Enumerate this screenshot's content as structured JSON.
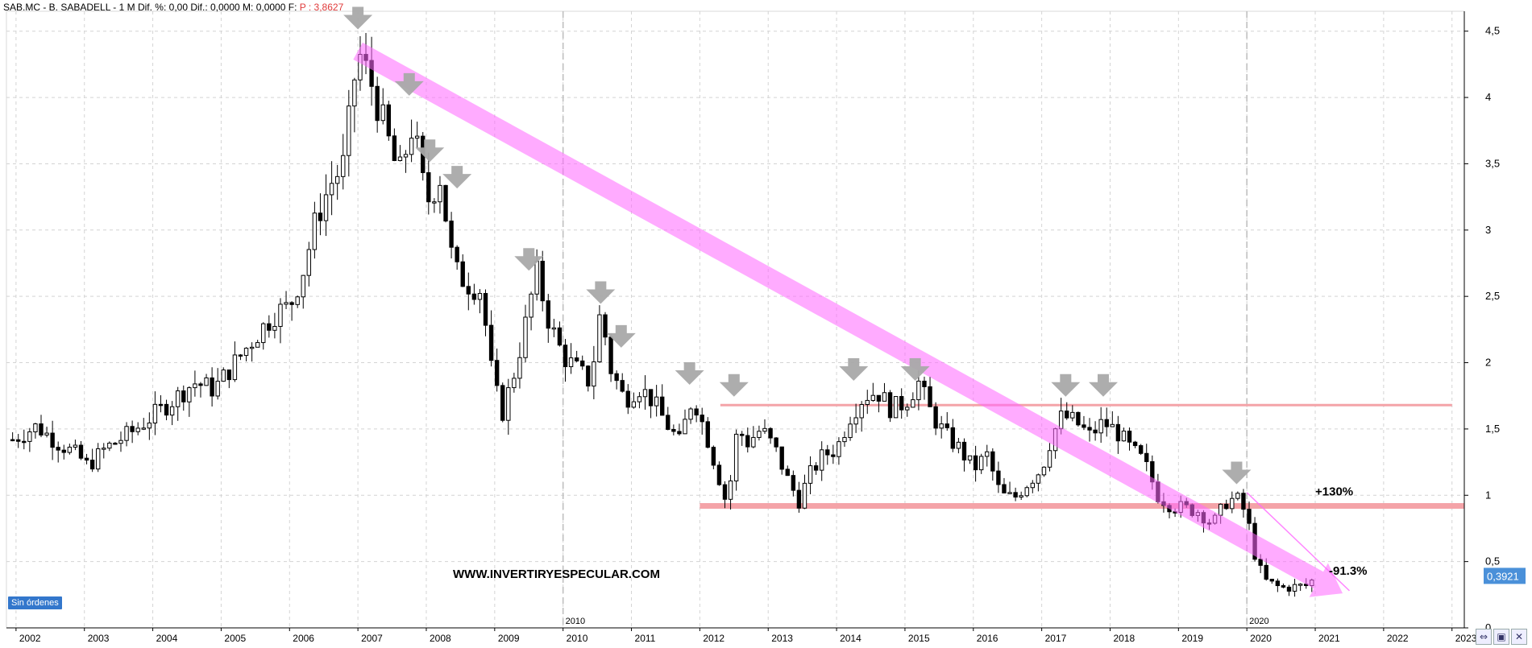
{
  "header": {
    "symbol": "SAB.MC - B. SABADELL -",
    "timeframe": "1 M",
    "fields": "Dif. %: 0,00  Dif.: 0,0000  M: 0,0000  F:",
    "price": "P : 3,8627"
  },
  "badge": "Sin órdenes",
  "watermark": "WWW.INVERTIRYESPECULAR.COM",
  "footer_icons": [
    "arrows-icon",
    "save-icon",
    "close-icon"
  ],
  "colors": {
    "channel": "#ff66ff",
    "support": "#f4a3a8",
    "arrow_marker": "#a9a9a9",
    "price_label_bg": "#4a90d9",
    "candle_bear": "#000000",
    "candle_bull": "#ffffff"
  },
  "chart_data": {
    "type": "candlestick",
    "ylim": [
      0,
      4.65
    ],
    "y_ticks": [
      "0",
      "0,5",
      "1",
      "1,5",
      "2",
      "2,5",
      "3",
      "3,5",
      "4",
      "4,5"
    ],
    "y_tick_values": [
      0,
      0.5,
      1,
      1.5,
      2,
      2.5,
      3,
      3.5,
      4,
      4.5
    ],
    "x_ticks": [
      "2002",
      "2003",
      "2004",
      "2005",
      "2006",
      "2007",
      "2008",
      "2009",
      "2010",
      "2011",
      "2012",
      "2013",
      "2014",
      "2015",
      "2016",
      "2017",
      "2018",
      "2019",
      "2020",
      "2021",
      "2022",
      "2023"
    ],
    "x_tick_years": [
      2002,
      2003,
      2004,
      2005,
      2006,
      2007,
      2008,
      2009,
      2010,
      2011,
      2012,
      2013,
      2014,
      2015,
      2016,
      2017,
      2018,
      2019,
      2020,
      2021,
      2022,
      2023
    ],
    "x_range": [
      2001.86,
      2023.18
    ],
    "highlight_years": [
      "2010",
      "2020"
    ],
    "highlight_year_values": [
      2010,
      2020
    ],
    "grid": true,
    "last_price": "0,3921",
    "last_price_value": 0.3921,
    "close_path": [
      [
        2001.95,
        1.42
      ],
      [
        2002.3,
        1.52
      ],
      [
        2002.6,
        1.4
      ],
      [
        2002.9,
        1.3
      ],
      [
        2003.05,
        1.22
      ],
      [
        2003.3,
        1.35
      ],
      [
        2003.7,
        1.48
      ],
      [
        2004.0,
        1.6
      ],
      [
        2004.3,
        1.72
      ],
      [
        2004.6,
        1.85
      ],
      [
        2004.9,
        1.8
      ],
      [
        2005.2,
        2.0
      ],
      [
        2005.5,
        2.2
      ],
      [
        2005.8,
        2.38
      ],
      [
        2006.0,
        2.42
      ],
      [
        2006.2,
        2.7
      ],
      [
        2006.4,
        3.1
      ],
      [
        2006.6,
        3.35
      ],
      [
        2006.8,
        3.5
      ],
      [
        2006.9,
        3.95
      ],
      [
        2007.0,
        4.35
      ],
      [
        2007.2,
        4.1
      ],
      [
        2007.4,
        3.75
      ],
      [
        2007.6,
        3.4
      ],
      [
        2007.8,
        3.8
      ],
      [
        2008.0,
        3.2
      ],
      [
        2008.2,
        3.4
      ],
      [
        2008.4,
        2.7
      ],
      [
        2008.6,
        2.6
      ],
      [
        2008.8,
        2.55
      ],
      [
        2008.95,
        1.95
      ],
      [
        2009.1,
        1.6
      ],
      [
        2009.3,
        1.95
      ],
      [
        2009.5,
        2.4
      ],
      [
        2009.6,
        2.7
      ],
      [
        2009.8,
        2.3
      ],
      [
        2010.0,
        2.05
      ],
      [
        2010.2,
        1.95
      ],
      [
        2010.4,
        1.85
      ],
      [
        2010.55,
        2.4
      ],
      [
        2010.7,
        1.95
      ],
      [
        2010.9,
        1.72
      ],
      [
        2011.1,
        1.82
      ],
      [
        2011.3,
        1.72
      ],
      [
        2011.5,
        1.55
      ],
      [
        2011.7,
        1.4
      ],
      [
        2011.9,
        1.75
      ],
      [
        2012.1,
        1.45
      ],
      [
        2012.3,
        1.1
      ],
      [
        2012.4,
        0.92
      ],
      [
        2012.55,
        1.5
      ],
      [
        2012.7,
        1.4
      ],
      [
        2012.9,
        1.5
      ],
      [
        2013.1,
        1.35
      ],
      [
        2013.3,
        1.1
      ],
      [
        2013.45,
        0.96
      ],
      [
        2013.6,
        1.15
      ],
      [
        2013.8,
        1.3
      ],
      [
        2014.0,
        1.35
      ],
      [
        2014.2,
        1.6
      ],
      [
        2014.4,
        1.75
      ],
      [
        2014.6,
        1.78
      ],
      [
        2014.8,
        1.65
      ],
      [
        2015.0,
        1.7
      ],
      [
        2015.2,
        1.85
      ],
      [
        2015.4,
        1.6
      ],
      [
        2015.6,
        1.45
      ],
      [
        2015.8,
        1.35
      ],
      [
        2016.0,
        1.2
      ],
      [
        2016.2,
        1.3
      ],
      [
        2016.4,
        1.0
      ],
      [
        2016.6,
        0.98
      ],
      [
        2016.8,
        1.1
      ],
      [
        2017.0,
        1.2
      ],
      [
        2017.15,
        1.45
      ],
      [
        2017.3,
        1.6
      ],
      [
        2017.5,
        1.55
      ],
      [
        2017.7,
        1.45
      ],
      [
        2017.9,
        1.55
      ],
      [
        2018.1,
        1.48
      ],
      [
        2018.3,
        1.35
      ],
      [
        2018.5,
        1.25
      ],
      [
        2018.7,
        1.0
      ],
      [
        2018.9,
        0.92
      ],
      [
        2019.1,
        0.9
      ],
      [
        2019.3,
        0.88
      ],
      [
        2019.5,
        0.78
      ],
      [
        2019.7,
        0.95
      ],
      [
        2019.85,
        0.98
      ],
      [
        2020.0,
        0.85
      ],
      [
        2020.1,
        0.58
      ],
      [
        2020.25,
        0.36
      ],
      [
        2020.5,
        0.3
      ],
      [
        2020.7,
        0.31
      ],
      [
        2020.9,
        0.32
      ],
      [
        2021.0,
        0.39
      ]
    ],
    "channel": {
      "from": [
        2007.0,
        4.35
      ],
      "to": [
        2021.05,
        0.36
      ]
    },
    "channel_upper_line": {
      "from": [
        2020.0,
        1.02
      ],
      "to": [
        2021.5,
        0.28
      ]
    },
    "resistance_level": 1.68,
    "resistance_range": [
      2012.3,
      2023.0
    ],
    "support_level": 0.92,
    "support_range": [
      2012.0,
      2023.18
    ],
    "arrows": [
      [
        2007.0,
        4.55
      ],
      [
        2007.75,
        4.05
      ],
      [
        2008.05,
        3.55
      ],
      [
        2008.45,
        3.35
      ],
      [
        2009.5,
        2.73
      ],
      [
        2010.55,
        2.48
      ],
      [
        2010.85,
        2.15
      ],
      [
        2011.85,
        1.87
      ],
      [
        2012.5,
        1.78
      ],
      [
        2014.25,
        1.9
      ],
      [
        2015.15,
        1.9
      ],
      [
        2017.35,
        1.78
      ],
      [
        2017.9,
        1.78
      ],
      [
        2019.85,
        1.12
      ]
    ],
    "annotations": [
      {
        "text": "+130%",
        "x": 2021.0,
        "y": 1.0
      },
      {
        "text": "-91.3%",
        "x": 2021.2,
        "y": 0.4
      }
    ]
  }
}
